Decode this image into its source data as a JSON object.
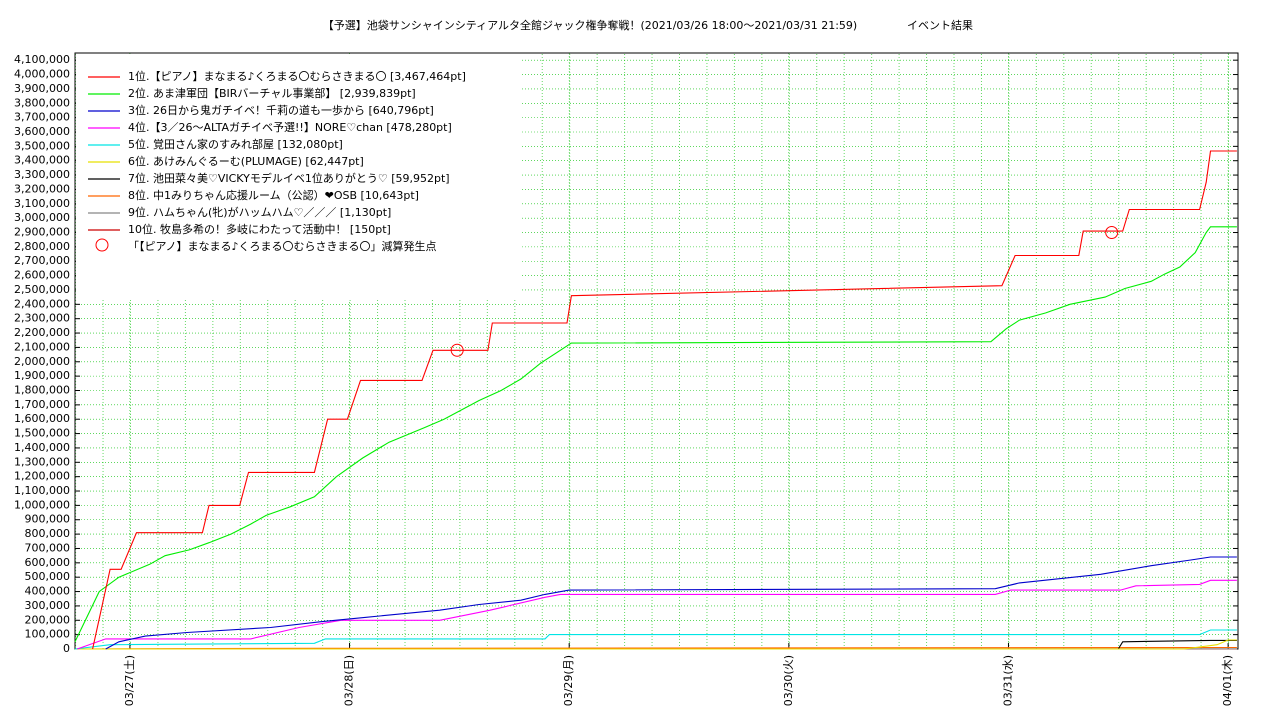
{
  "chart_data": {
    "type": "line",
    "title": "【予選】池袋サンシャインシティアルタ全館ジャック権争奪戦！(2021/03/26 18:00〜2021/03/31 21:59)",
    "subtitle": "イベント結果",
    "grid": true,
    "legend": "upper left",
    "xlim": [
      0.75,
      6.045
    ],
    "xticks": [
      {
        "value": 1,
        "label": "03/27(土)"
      },
      {
        "value": 2,
        "label": "03/28(日)"
      },
      {
        "value": 3,
        "label": "03/29(月)"
      },
      {
        "value": 4,
        "label": "03/30(火)"
      },
      {
        "value": 5,
        "label": "03/31(水)"
      },
      {
        "value": 6,
        "label": "04/01(木)"
      }
    ],
    "ylim": [
      0,
      4150000
    ],
    "yticks": [
      0,
      {
        "value": 100000,
        "label": "100,000"
      },
      {
        "value": 200000,
        "label": "200,000"
      },
      {
        "value": 300000,
        "label": "300,000"
      },
      {
        "value": 400000,
        "label": "400,000"
      },
      {
        "value": 500000,
        "label": "500,000"
      },
      {
        "value": 600000,
        "label": "600,000"
      },
      {
        "value": 700000,
        "label": "700,000"
      },
      {
        "value": 800000,
        "label": "800,000"
      },
      {
        "value": 900000,
        "label": "900,000"
      },
      {
        "value": 1000000,
        "label": "1,000,000"
      },
      {
        "value": 1100000,
        "label": "1,100,000"
      },
      {
        "value": 1200000,
        "label": "1,200,000"
      },
      {
        "value": 1300000,
        "label": "1,300,000"
      },
      {
        "value": 1400000,
        "label": "1,400,000"
      },
      {
        "value": 1500000,
        "label": "1,500,000"
      },
      {
        "value": 1600000,
        "label": "1,600,000"
      },
      {
        "value": 1700000,
        "label": "1,700,000"
      },
      {
        "value": 1800000,
        "label": "1,800,000"
      },
      {
        "value": 1900000,
        "label": "1,900,000"
      },
      {
        "value": 2000000,
        "label": "2,000,000"
      },
      {
        "value": 2100000,
        "label": "2,100,000"
      },
      {
        "value": 2200000,
        "label": "2,200,000"
      },
      {
        "value": 2300000,
        "label": "2,300,000"
      },
      {
        "value": 2400000,
        "label": "2,400,000"
      },
      {
        "value": 2500000,
        "label": "2,500,000"
      },
      {
        "value": 2600000,
        "label": "2,600,000"
      },
      {
        "value": 2700000,
        "label": "2,700,000"
      },
      {
        "value": 2800000,
        "label": "2,800,000"
      },
      {
        "value": 2900000,
        "label": "2,900,000"
      },
      {
        "value": 3000000,
        "label": "3,000,000"
      },
      {
        "value": 3100000,
        "label": "3,100,000"
      },
      {
        "value": 3200000,
        "label": "3,200,000"
      },
      {
        "value": 3300000,
        "label": "3,300,000"
      },
      {
        "value": 3400000,
        "label": "3,400,000"
      },
      {
        "value": 3500000,
        "label": "3,500,000"
      },
      {
        "value": 3600000,
        "label": "3,600,000"
      },
      {
        "value": 3700000,
        "label": "3,700,000"
      },
      {
        "value": 3800000,
        "label": "3,800,000"
      },
      {
        "value": 3900000,
        "label": "3,900,000"
      },
      {
        "value": 4000000,
        "label": "4,000,000"
      },
      {
        "value": 4100000,
        "label": "4,100,000"
      }
    ],
    "series": [
      {
        "name": "1位.【ピアノ】まなまる♪くろまる〇むらさきまる〇 [3,467,464pt]",
        "color": "#ff0000",
        "x": [
          0.83,
          0.91,
          0.96,
          1.03,
          1.33,
          1.36,
          1.5,
          1.54,
          1.84,
          1.9,
          1.99,
          2.05,
          2.33,
          2.38,
          2.63,
          2.65,
          2.99,
          3.01,
          4.97,
          5.03,
          5.32,
          5.34,
          5.52,
          5.55,
          5.87,
          5.9,
          5.92,
          6.04
        ],
        "values": [
          0,
          555000,
          555000,
          810000,
          810000,
          1000000,
          1000000,
          1230000,
          1230000,
          1600000,
          1600000,
          1870000,
          1870000,
          2080000,
          2080000,
          2270000,
          2270000,
          2460000,
          2530000,
          2740000,
          2740000,
          2910000,
          2910000,
          3060000,
          3060000,
          3250000,
          3467464,
          3467464
        ]
      },
      {
        "name": "2位. あま津軍団【BIRバーチャル事業部】 [2,939,839pt]",
        "color": "#00ee00",
        "x": [
          0.75,
          0.86,
          0.95,
          1.09,
          1.16,
          1.27,
          1.36,
          1.46,
          1.55,
          1.62,
          1.73,
          1.84,
          1.94,
          2.06,
          2.18,
          2.34,
          2.43,
          2.59,
          2.69,
          2.78,
          2.87,
          3.01,
          4.92,
          4.99,
          5.05,
          5.17,
          5.28,
          5.44,
          5.53,
          5.65,
          5.71,
          5.78,
          5.85,
          5.9,
          5.92,
          6.04
        ],
        "values": [
          50000,
          400000,
          500000,
          590000,
          650000,
          690000,
          740000,
          800000,
          870000,
          930000,
          990000,
          1060000,
          1200000,
          1330000,
          1440000,
          1540000,
          1600000,
          1730000,
          1800000,
          1880000,
          1990000,
          2130000,
          2140000,
          2230000,
          2290000,
          2340000,
          2400000,
          2450000,
          2510000,
          2560000,
          2610000,
          2660000,
          2760000,
          2900000,
          2939839,
          2939839
        ]
      },
      {
        "name": "3位. 26日から鬼ガチイベ！千莉の道も一歩から [640,796pt]",
        "color": "#0000cc",
        "x": [
          0.89,
          0.95,
          1.07,
          1.26,
          1.64,
          1.87,
          2.07,
          2.41,
          2.59,
          2.78,
          2.89,
          3.0,
          4.94,
          5.05,
          5.42,
          5.65,
          5.83,
          5.92,
          6.04
        ],
        "values": [
          0,
          50000,
          90000,
          115000,
          150000,
          190000,
          220000,
          270000,
          310000,
          340000,
          380000,
          410000,
          420000,
          460000,
          520000,
          580000,
          620000,
          640796,
          640796
        ]
      },
      {
        "name": "4位.【3／26〜ALTAガチイベ予選!!】NORE♡chan [478,280pt]",
        "color": "#ff00ff",
        "x": [
          0.76,
          0.89,
          1.55,
          1.77,
          1.96,
          2.41,
          2.64,
          2.89,
          2.96,
          4.94,
          5.01,
          5.51,
          5.58,
          5.87,
          5.92,
          6.04
        ],
        "values": [
          0,
          70000,
          70000,
          150000,
          200000,
          200000,
          270000,
          360000,
          380000,
          380000,
          410000,
          410000,
          440000,
          450000,
          478280,
          478280
        ]
      },
      {
        "name": "5位. 覚田さん家のすみれ部屋 [132,080pt]",
        "color": "#00e5e5",
        "x": [
          0.75,
          0.91,
          1.84,
          1.89,
          2.89,
          2.91,
          5.87,
          5.92,
          6.04
        ],
        "values": [
          0,
          30000,
          40000,
          70000,
          70000,
          100000,
          100000,
          132080,
          132080
        ]
      },
      {
        "name": "6位. あけみんぐるーむ(PLUMAGE) [62,447pt]",
        "color": "#e8e000",
        "x": [
          0.75,
          5.8,
          5.95,
          6.0,
          6.04
        ],
        "values": [
          0,
          0,
          30000,
          62447,
          62447
        ]
      },
      {
        "name": "7位. 池田菜々美♡VICKYモデルイベ1位ありがとう♡ [59,952pt]",
        "color": "#000000",
        "x": [
          0.75,
          5.5,
          5.52,
          5.92,
          6.04
        ],
        "values": [
          0,
          0,
          50000,
          59952,
          59952
        ]
      },
      {
        "name": "8位. 中1みりちゃん応援ルーム（公認）❤OSB [10,643pt]",
        "color": "#ff6600",
        "x": [
          0.75,
          1.84,
          6.04
        ],
        "values": [
          0,
          5000,
          10643
        ]
      },
      {
        "name": "9位. ハムちゃん(牝)がハッムハム♡／／／ [1,130pt]",
        "color": "#888888",
        "x": [
          0.75,
          6.04
        ],
        "values": [
          0,
          1130
        ]
      },
      {
        "name": "10位. 牧島多希の！多岐にわたって活動中！ [150pt]",
        "color": "#cc0000",
        "x": [
          0.75,
          6.04
        ],
        "values": [
          0,
          150
        ]
      }
    ],
    "markers": {
      "name": "「【ピアノ】まなまる♪くろまる〇むらさきまる〇」減算発生点",
      "color": "#ff0000",
      "x": [
        2.49,
        5.47
      ],
      "values": [
        2080000,
        2900000
      ]
    }
  }
}
